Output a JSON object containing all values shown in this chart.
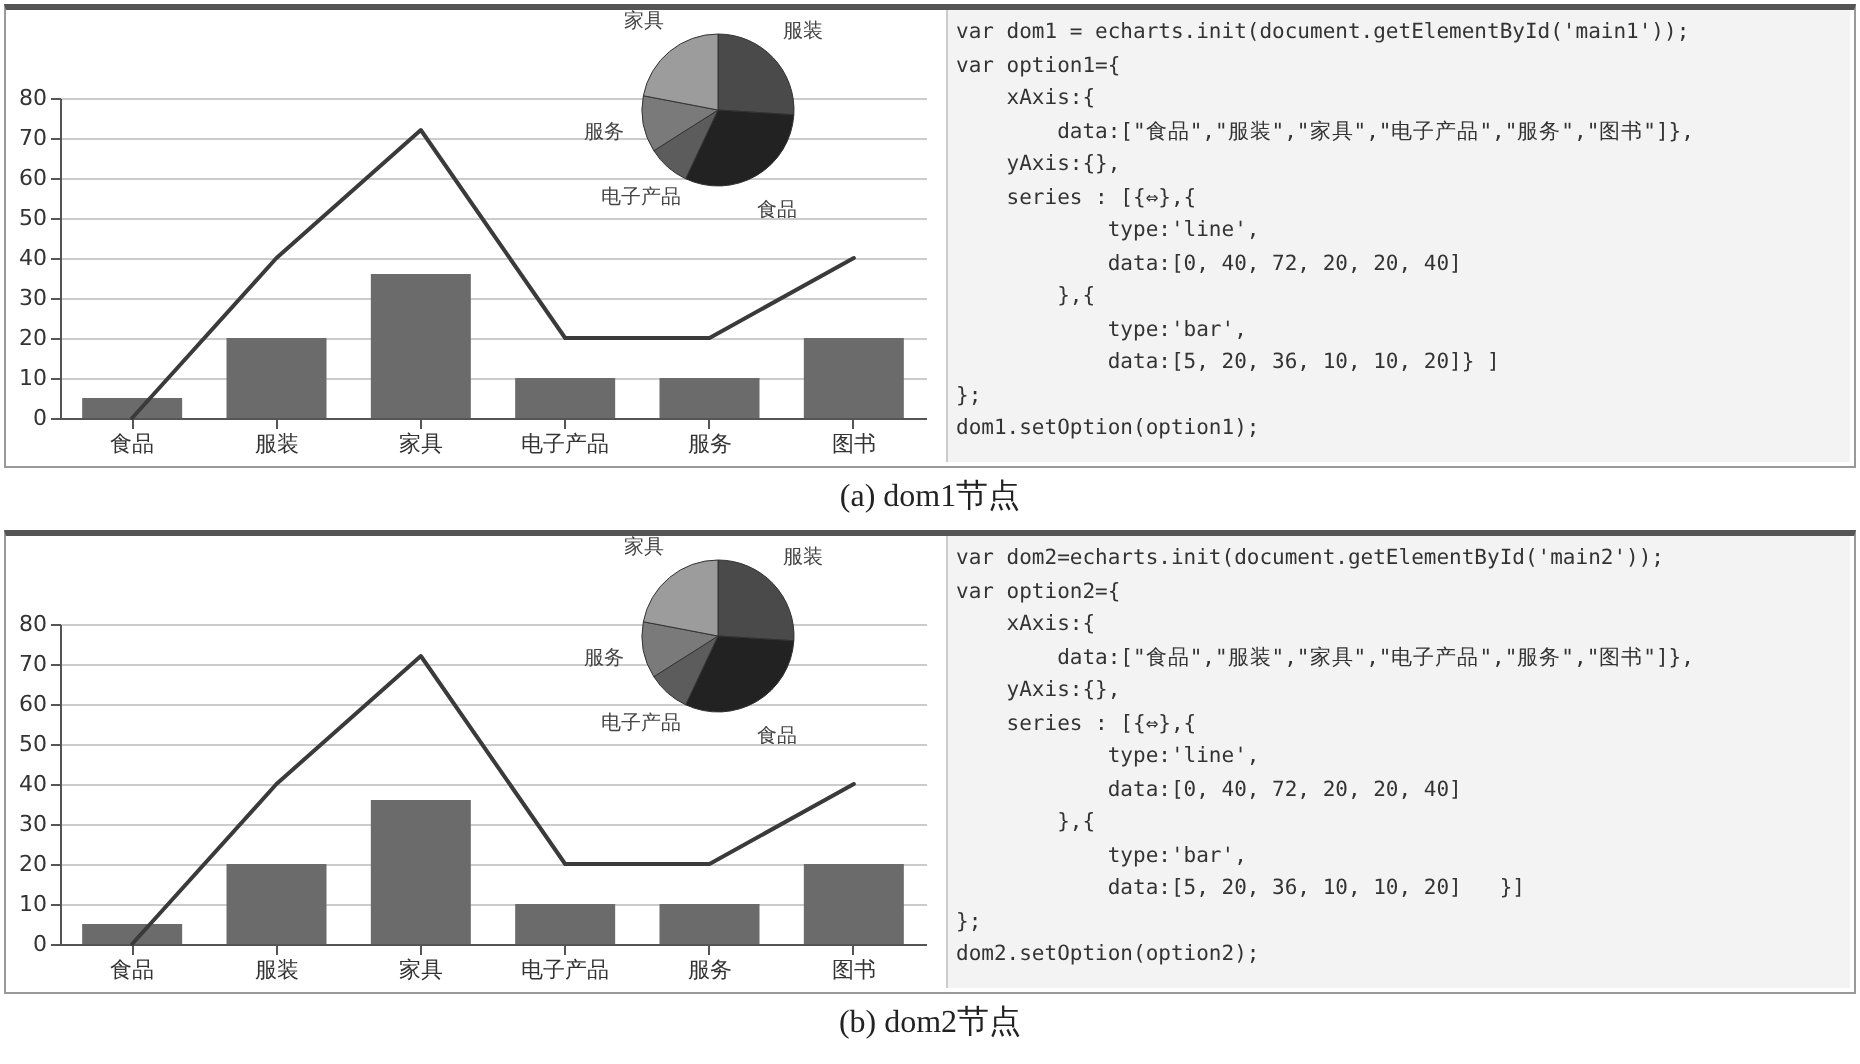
{
  "chart_data": [
    {
      "type": "bar",
      "categories": [
        "食品",
        "服装",
        "家具",
        "电子产品",
        "服务",
        "图书"
      ],
      "series": [
        {
          "type": "bar",
          "color": "#6b6b6b",
          "values": [
            5,
            20,
            36,
            10,
            10,
            20
          ]
        },
        {
          "type": "line",
          "color": "#3a3a3a",
          "values": [
            0,
            40,
            72,
            20,
            20,
            40
          ]
        }
      ],
      "ylim": [
        0,
        80
      ],
      "yticks": [
        0,
        10,
        20,
        30,
        40,
        50,
        60,
        70,
        80
      ],
      "grid": "y",
      "line_style": "solid",
      "annotations": [
        "(a) dom1节点"
      ]
    },
    {
      "type": "pie",
      "categories": [
        "服装",
        "食品",
        "电子产品",
        "服务",
        "家具"
      ],
      "values": [
        26,
        31,
        9,
        12,
        22
      ],
      "colors": [
        "#4a4a4a",
        "#222222",
        "#5c5c5c",
        "#7a7a7a",
        "#9c9c9c"
      ]
    },
    {
      "type": "other",
      "annotations": [
        "var dom1 = echarts.init(document.getElementById('main1'));",
        "var option1={",
        "    xAxis:{",
        "        data:[\"食品\",\"服装\",\"家具\",\"电子产品\",\"服务\",\"图书\"]},",
        "    yAxis:{},",
        "    series : [{⇔},{",
        "            type:'line',",
        "            data:[0, 40, 72, 20, 20, 40]",
        "        },{",
        "            type:'bar',",
        "            data:[5, 20, 36, 10, 10, 20]} ]",
        "};",
        "dom1.setOption(option1);"
      ]
    },
    {
      "type": "bar",
      "categories": [
        "食品",
        "服装",
        "家具",
        "电子产品",
        "服务",
        "图书"
      ],
      "series": [
        {
          "type": "bar",
          "color": "#6b6b6b",
          "values": [
            5,
            20,
            36,
            10,
            10,
            20
          ]
        },
        {
          "type": "line",
          "color": "#3a3a3a",
          "values": [
            0,
            40,
            72,
            20,
            20,
            40
          ]
        }
      ],
      "ylim": [
        0,
        80
      ],
      "yticks": [
        0,
        10,
        20,
        30,
        40,
        50,
        60,
        70,
        80
      ],
      "grid": "y",
      "line_style": "solid",
      "annotations": [
        "(b) dom2节点"
      ]
    },
    {
      "type": "pie",
      "categories": [
        "服装",
        "食品",
        "电子产品",
        "服务",
        "家具"
      ],
      "values": [
        26,
        31,
        9,
        12,
        22
      ],
      "colors": [
        "#4a4a4a",
        "#222222",
        "#5c5c5c",
        "#7a7a7a",
        "#9c9c9c"
      ]
    },
    {
      "type": "other",
      "annotations": [
        "var dom2=echarts.init(document.getElementById('main2'));",
        "var option2={",
        "    xAxis:{",
        "        data:[\"食品\",\"服装\",\"家具\",\"电子产品\",\"服务\",\"图书\"]},",
        "    yAxis:{},",
        "    series : [{⇔},{",
        "            type:'line',",
        "            data:[0, 40, 72, 20, 20, 40]",
        "        },{",
        "            type:'bar',",
        "            data:[5, 20, 36, 10, 10, 20]   }]",
        "};",
        "dom2.setOption(option2);"
      ]
    }
  ]
}
